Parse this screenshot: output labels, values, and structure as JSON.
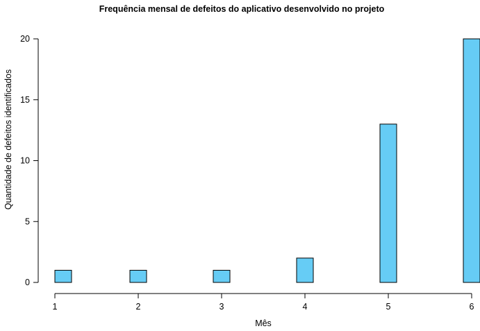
{
  "chart_data": {
    "type": "bar",
    "title": "Frequência mensal de defeitos do aplicativo desenvolvido no projeto",
    "xlabel": "Mês",
    "ylabel": "Quantidade de defeitos identificados",
    "x": [
      1,
      2,
      3,
      4,
      5,
      6
    ],
    "values": [
      1,
      1,
      1,
      2,
      13,
      20
    ],
    "xlim": [
      1,
      6
    ],
    "ylim": [
      0,
      20
    ],
    "x_ticks": [
      "1",
      "2",
      "3",
      "4",
      "5",
      "6"
    ],
    "y_ticks": [
      "0",
      "5",
      "10",
      "15",
      "20"
    ],
    "bar_color": "#66ccf5",
    "grid": false,
    "legend": "none"
  }
}
